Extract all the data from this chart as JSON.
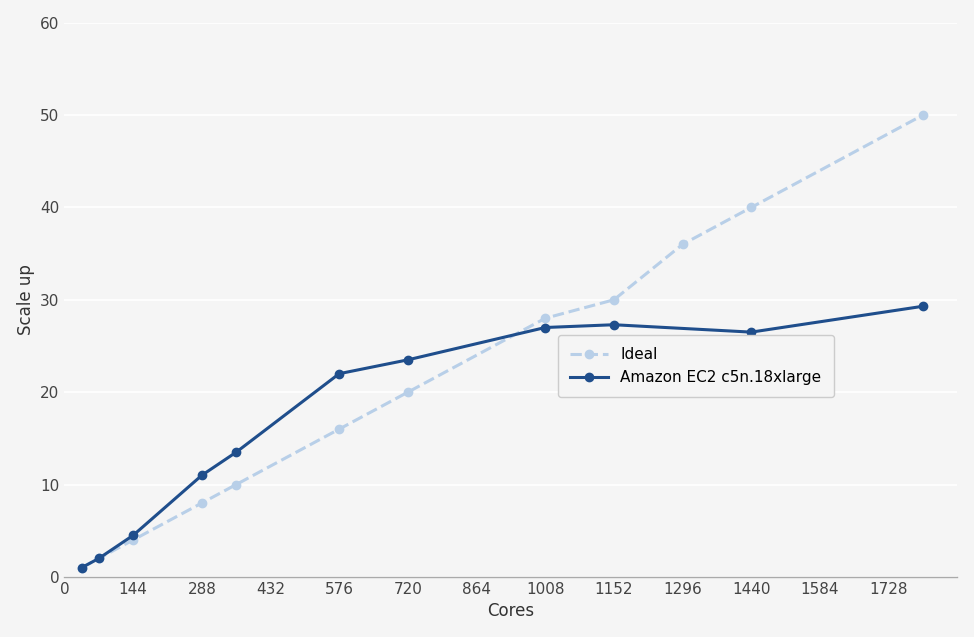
{
  "ideal_x": [
    36,
    72,
    144,
    288,
    360,
    576,
    720,
    1008,
    1152,
    1296,
    1440,
    1800
  ],
  "ideal_y": [
    1.0,
    2.0,
    4.0,
    8.0,
    10.0,
    16.0,
    20.0,
    28.0,
    30.0,
    36.0,
    40.0,
    50.0
  ],
  "actual_x": [
    36,
    72,
    144,
    288,
    360,
    576,
    720,
    1008,
    1152,
    1440,
    1800
  ],
  "actual_y": [
    1.0,
    2.0,
    4.5,
    11.0,
    13.5,
    22.0,
    23.5,
    27.0,
    27.3,
    26.5,
    29.3
  ],
  "ideal_color": "#b8cfe8",
  "actual_color": "#1f4e8c",
  "ideal_label": "Ideal",
  "actual_label": "Amazon EC2 c5n.18xlarge",
  "xlabel": "Cores",
  "ylabel": "Scale up",
  "xlim": [
    0,
    1872
  ],
  "ylim": [
    0,
    60
  ],
  "xticks": [
    0,
    144,
    288,
    432,
    576,
    720,
    864,
    1008,
    1152,
    1296,
    1440,
    1584,
    1728
  ],
  "yticks": [
    0,
    10,
    20,
    30,
    40,
    50,
    60
  ],
  "bg_color": "#f5f5f5",
  "plot_bg_color": "#f5f5f5",
  "grid_color": "#ffffff"
}
